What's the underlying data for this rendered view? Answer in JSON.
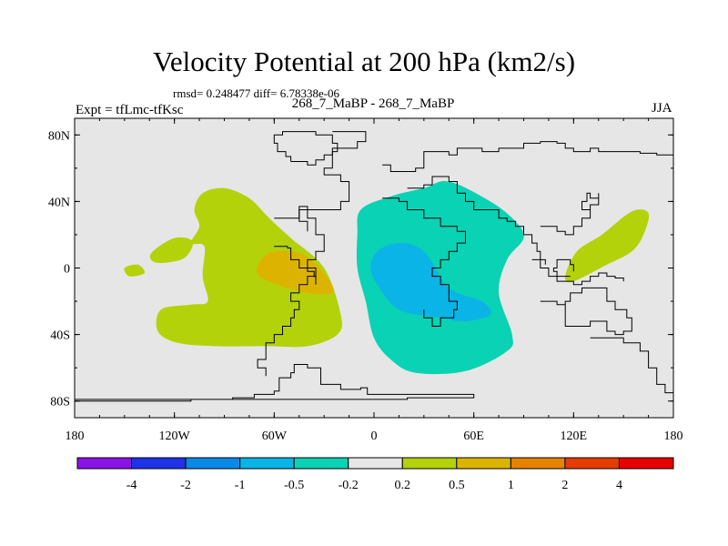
{
  "chart_data": {
    "type": "heatmap",
    "title": "Velocity Potential at 200 hPa (km2/s)",
    "subtitle_stats": "rmsd= 0.248477 diff= 6.78338e-06",
    "left_label": "Expt = tfLmc-tfKsc",
    "center_label": "268_7_MaBP - 268_7_MaBP",
    "right_label": "JJA",
    "x_ticks": [
      "180",
      "120W",
      "60W",
      "0",
      "60E",
      "120E",
      "180"
    ],
    "x_tick_values": [
      -180,
      -120,
      -60,
      0,
      60,
      120,
      180
    ],
    "y_ticks": [
      "80N",
      "40N",
      "0",
      "40S",
      "80S"
    ],
    "y_tick_values": [
      80,
      40,
      0,
      -40,
      -80
    ],
    "xlim": [
      -180,
      180
    ],
    "ylim": [
      -90,
      90
    ],
    "colorbar": {
      "levels": [
        "-4",
        "-2",
        "-1",
        "-0.5",
        "-0.2",
        "0.2",
        "0.5",
        "1",
        "2",
        "4"
      ],
      "colors": [
        "#8a14e6",
        "#1e32e6",
        "#0a8ae6",
        "#0ab4e6",
        "#0ad2b4",
        "#e6e6e6",
        "#b4d20a",
        "#dcb400",
        "#e68200",
        "#e63c00",
        "#e60000"
      ]
    },
    "regions": [
      {
        "name": "positive-west-blob",
        "level": "0.2 to 0.5",
        "color_index": 6,
        "points": [
          [
            -90,
            48
          ],
          [
            -75,
            42
          ],
          [
            -63,
            30
          ],
          [
            -50,
            18
          ],
          [
            -30,
            0
          ],
          [
            -20,
            -28
          ],
          [
            -22,
            -40
          ],
          [
            -40,
            -47
          ],
          [
            -65,
            -47
          ],
          [
            -95,
            -47
          ],
          [
            -118,
            -45
          ],
          [
            -130,
            -38
          ],
          [
            -128,
            -25
          ],
          [
            -110,
            -22
          ],
          [
            -100,
            -20
          ],
          [
            -103,
            -5
          ],
          [
            -102,
            13
          ],
          [
            -110,
            15
          ],
          [
            -105,
            25
          ],
          [
            -108,
            35
          ],
          [
            -103,
            45
          ]
        ]
      },
      {
        "name": "positive-west-core",
        "level": "0.5 to 1",
        "color_index": 7,
        "points": [
          [
            -60,
            10
          ],
          [
            -42,
            8
          ],
          [
            -28,
            -6
          ],
          [
            -25,
            -15
          ],
          [
            -40,
            -15
          ],
          [
            -58,
            -10
          ],
          [
            -70,
            -4
          ],
          [
            -68,
            5
          ]
        ]
      },
      {
        "name": "positive-west-small-1",
        "level": "0.2 to 0.5",
        "color_index": 6,
        "points": [
          [
            -133,
            10
          ],
          [
            -120,
            18
          ],
          [
            -109,
            16
          ],
          [
            -114,
            6
          ],
          [
            -128,
            3
          ],
          [
            -134,
            5
          ]
        ]
      },
      {
        "name": "positive-west-small-2",
        "level": "0.2 to 0.5",
        "color_index": 6,
        "points": [
          [
            -150,
            0
          ],
          [
            -142,
            2
          ],
          [
            -138,
            -3
          ],
          [
            -147,
            -5
          ]
        ]
      },
      {
        "name": "positive-east-blob",
        "level": "0.2 to 0.5",
        "color_index": 6,
        "points": [
          [
            115,
            -5
          ],
          [
            122,
            10
          ],
          [
            137,
            20
          ],
          [
            155,
            34
          ],
          [
            165,
            33
          ],
          [
            162,
            20
          ],
          [
            155,
            10
          ],
          [
            140,
            2
          ],
          [
            120,
            -8
          ]
        ]
      },
      {
        "name": "negative-central",
        "level": "-0.5 to -0.2",
        "color_index": 4,
        "points": [
          [
            -8,
            35
          ],
          [
            10,
            43
          ],
          [
            30,
            48
          ],
          [
            45,
            52
          ],
          [
            70,
            40
          ],
          [
            85,
            28
          ],
          [
            90,
            18
          ],
          [
            80,
            5
          ],
          [
            75,
            -15
          ],
          [
            83,
            -40
          ],
          [
            80,
            -50
          ],
          [
            55,
            -62
          ],
          [
            25,
            -63
          ],
          [
            10,
            -55
          ],
          [
            0,
            -42
          ],
          [
            -5,
            -20
          ],
          [
            -10,
            0
          ],
          [
            -10,
            20
          ]
        ]
      },
      {
        "name": "negative-central-core",
        "level": "-1 to -0.5",
        "color_index": 3,
        "points": [
          [
            2,
            10
          ],
          [
            15,
            15
          ],
          [
            30,
            10
          ],
          [
            45,
            -12
          ],
          [
            65,
            -20
          ],
          [
            70,
            -28
          ],
          [
            55,
            -32
          ],
          [
            40,
            -30
          ],
          [
            15,
            -25
          ],
          [
            2,
            -10
          ],
          [
            -2,
            0
          ]
        ]
      }
    ],
    "coastlines": [
      [
        [
          -180,
          -80
        ],
        [
          -130,
          -80
        ],
        [
          -110,
          -79
        ],
        [
          -85,
          -78
        ],
        [
          -72,
          -76
        ],
        [
          -60,
          -74
        ],
        [
          -57,
          -66
        ],
        [
          -50,
          -63
        ],
        [
          -48,
          -58
        ],
        [
          -40,
          -60
        ],
        [
          -32,
          -60
        ],
        [
          -32,
          -70
        ],
        [
          -20,
          -73
        ],
        [
          -8,
          -72
        ],
        [
          -4,
          -76
        ],
        [
          0,
          -76
        ],
        [
          20,
          -76
        ],
        [
          60,
          -76
        ],
        [
          60,
          -78
        ],
        [
          20,
          -79
        ],
        [
          -180,
          -79
        ]
      ],
      [
        [
          -60,
          30
        ],
        [
          -45,
          37
        ],
        [
          -40,
          37
        ],
        [
          -40,
          30
        ],
        [
          -35,
          20
        ],
        [
          -30,
          10
        ],
        [
          -35,
          5
        ],
        [
          -40,
          0
        ],
        [
          -35,
          -5
        ],
        [
          -40,
          -10
        ],
        [
          -45,
          -15
        ],
        [
          -50,
          -20
        ],
        [
          -45,
          -25
        ],
        [
          -48,
          -30
        ],
        [
          -50,
          -35
        ],
        [
          -55,
          -40
        ],
        [
          -60,
          -45
        ],
        [
          -65,
          -55
        ],
        [
          -70,
          -60
        ],
        [
          -65,
          -65
        ]
      ],
      [
        [
          -25,
          82
        ],
        [
          -8,
          82
        ],
        [
          -5,
          76
        ],
        [
          -10,
          72
        ],
        [
          -25,
          70
        ],
        [
          -25,
          60
        ],
        [
          -30,
          56
        ],
        [
          -20,
          52
        ],
        [
          -15,
          40
        ],
        [
          -20,
          35
        ],
        [
          -35,
          35
        ],
        [
          -45,
          28
        ],
        [
          -40,
          22
        ]
      ],
      [
        [
          5,
          42
        ],
        [
          15,
          40
        ],
        [
          20,
          35
        ],
        [
          30,
          30
        ],
        [
          40,
          25
        ],
        [
          50,
          22
        ],
        [
          55,
          15
        ],
        [
          50,
          10
        ],
        [
          45,
          5
        ],
        [
          40,
          0
        ],
        [
          35,
          -5
        ],
        [
          40,
          -10
        ],
        [
          45,
          -20
        ],
        [
          50,
          -25
        ],
        [
          48,
          -30
        ],
        [
          40,
          -35
        ],
        [
          35,
          -30
        ],
        [
          30,
          -25
        ]
      ],
      [
        [
          20,
          48
        ],
        [
          30,
          50
        ],
        [
          35,
          55
        ],
        [
          45,
          52
        ],
        [
          50,
          45
        ],
        [
          55,
          40
        ],
        [
          60,
          35
        ],
        [
          70,
          35
        ],
        [
          75,
          30
        ],
        [
          80,
          28
        ],
        [
          85,
          25
        ],
        [
          90,
          20
        ],
        [
          95,
          15
        ],
        [
          98,
          10
        ],
        [
          100,
          5
        ],
        [
          103,
          2
        ]
      ],
      [
        [
          5,
          62
        ],
        [
          10,
          58
        ],
        [
          20,
          58
        ],
        [
          25,
          60
        ],
        [
          30,
          62
        ],
        [
          30,
          70
        ],
        [
          40,
          70
        ],
        [
          45,
          68
        ],
        [
          50,
          72
        ],
        [
          60,
          72
        ],
        [
          65,
          70
        ],
        [
          75,
          72
        ],
        [
          80,
          72
        ],
        [
          90,
          75
        ],
        [
          100,
          76
        ],
        [
          110,
          75
        ],
        [
          115,
          72
        ],
        [
          120,
          70
        ],
        [
          125,
          70
        ],
        [
          130,
          72
        ],
        [
          135,
          70
        ],
        [
          140,
          70
        ],
        [
          150,
          70
        ],
        [
          160,
          69
        ],
        [
          170,
          68
        ],
        [
          180,
          67
        ]
      ],
      [
        [
          100,
          -20
        ],
        [
          110,
          -22
        ],
        [
          115,
          -25
        ],
        [
          115,
          -35
        ],
        [
          120,
          -35
        ],
        [
          130,
          -32
        ],
        [
          135,
          -32
        ],
        [
          140,
          -38
        ],
        [
          145,
          -40
        ],
        [
          150,
          -38
        ],
        [
          155,
          -30
        ],
        [
          152,
          -25
        ],
        [
          145,
          -20
        ],
        [
          140,
          -12
        ],
        [
          135,
          -12
        ],
        [
          130,
          -12
        ],
        [
          125,
          -15
        ],
        [
          118,
          -20
        ],
        [
          115,
          -22
        ]
      ],
      [
        [
          130,
          -42
        ],
        [
          145,
          -42
        ],
        [
          150,
          -45
        ],
        [
          155,
          -45
        ],
        [
          160,
          -50
        ],
        [
          165,
          -52
        ],
        [
          165,
          -60
        ],
        [
          170,
          -65
        ],
        [
          170,
          -70
        ],
        [
          175,
          -75
        ],
        [
          180,
          -78
        ]
      ],
      [
        [
          100,
          25
        ],
        [
          110,
          22
        ],
        [
          115,
          20
        ],
        [
          120,
          25
        ],
        [
          125,
          30
        ],
        [
          130,
          35
        ],
        [
          125,
          40
        ],
        [
          128,
          45
        ],
        [
          130,
          42
        ],
        [
          135,
          45
        ],
        [
          135,
          38
        ],
        [
          130,
          30
        ],
        [
          125,
          25
        ],
        [
          120,
          20
        ]
      ],
      [
        [
          118,
          -5
        ],
        [
          115,
          -5
        ],
        [
          110,
          -2
        ],
        [
          108,
          0
        ],
        [
          110,
          5
        ],
        [
          115,
          5
        ],
        [
          118,
          2
        ],
        [
          120,
          -2
        ]
      ],
      [
        [
          95,
          5
        ],
        [
          100,
          0
        ],
        [
          105,
          -5
        ],
        [
          110,
          -8
        ],
        [
          115,
          -8
        ],
        [
          120,
          -10
        ],
        [
          125,
          -8
        ],
        [
          130,
          -5
        ],
        [
          135,
          -3
        ],
        [
          140,
          -5
        ],
        [
          145,
          -6
        ],
        [
          150,
          -8
        ]
      ],
      [
        [
          -60,
          13
        ],
        [
          -52,
          12
        ],
        [
          -50,
          5
        ],
        [
          -45,
          0
        ],
        [
          -40,
          -2
        ],
        [
          -36,
          -5
        ],
        [
          -35,
          -10
        ]
      ],
      [
        [
          -50,
          64
        ],
        [
          -40,
          62
        ],
        [
          -35,
          65
        ],
        [
          -30,
          68
        ],
        [
          -25,
          70
        ],
        [
          -22,
          75
        ],
        [
          -25,
          80
        ],
        [
          -35,
          82
        ],
        [
          -45,
          82
        ],
        [
          -55,
          80
        ],
        [
          -60,
          75
        ],
        [
          -58,
          70
        ],
        [
          -53,
          67
        ],
        [
          -50,
          64
        ]
      ]
    ]
  }
}
